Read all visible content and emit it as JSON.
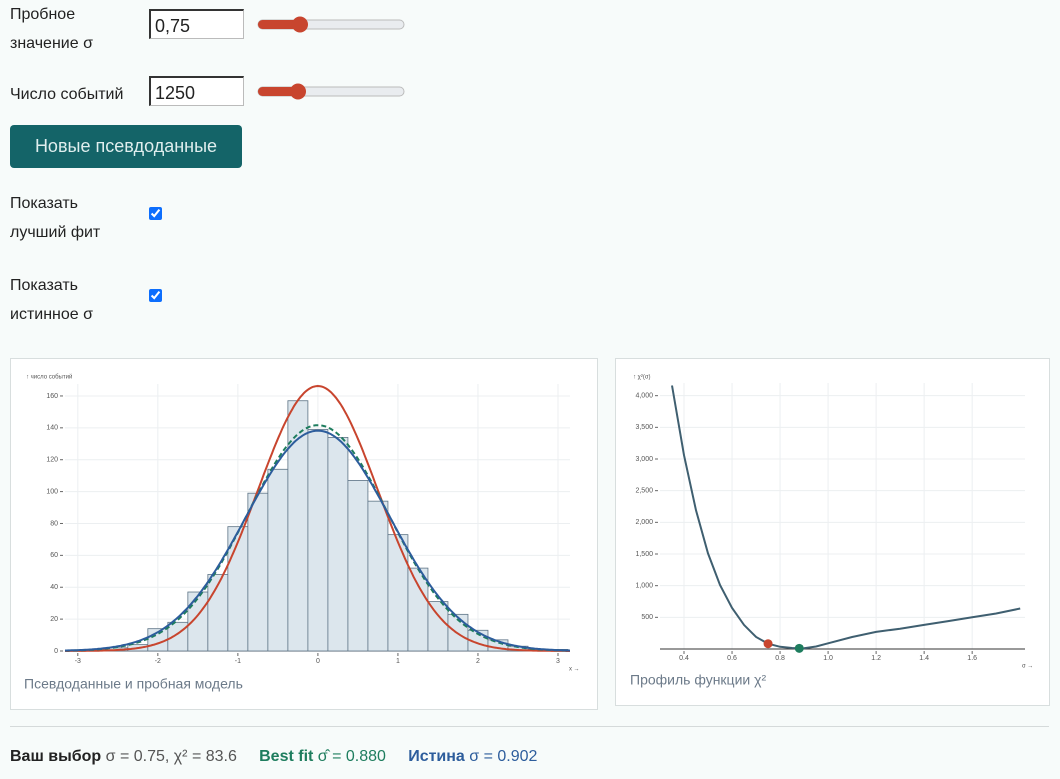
{
  "controls": {
    "sigma_label": "Пробное значение σ",
    "sigma_input": "0,75",
    "events_label": "Число событий",
    "events_value": 1250,
    "button": "Новые псевдоданные",
    "show_fit_label": "Показать лучший фит",
    "show_true_label": "Показать истинное σ"
  },
  "chart_data": [
    {
      "type": "histogram",
      "caption": "Псевдоданные и пробная модель",
      "ylabel": "↑ число событий",
      "xlabel": "x →",
      "bins": [
        -3.125,
        -2.875,
        -2.625,
        -2.375,
        -2.125,
        -1.875,
        -1.625,
        -1.375,
        -1.125,
        -0.875,
        -0.625,
        -0.375,
        -0.125,
        0.125,
        0.375,
        0.625,
        0.875,
        1.125,
        1.375,
        1.625,
        1.875,
        2.125,
        2.375,
        2.625,
        2.875,
        3.125
      ],
      "counts": [
        0,
        1,
        2,
        4,
        14,
        18,
        37,
        48,
        78,
        99,
        114,
        157,
        139,
        134,
        107,
        94,
        73,
        52,
        31,
        23,
        13,
        7,
        3,
        1,
        1
      ],
      "bar_color": "#dce6ed",
      "bar_edge": "#5d7385",
      "curves": [
        {
          "color": "#c8452e"
        },
        {
          "color": "#1e7d5e",
          "dashed": true
        },
        {
          "color": "#2d5d9c"
        }
      ],
      "xlim": [
        -3.16,
        3.15
      ],
      "xticks": [
        -3,
        -2,
        -1,
        0,
        1,
        2,
        3
      ],
      "ylim": [
        0,
        167.5
      ],
      "yticks": [
        0,
        20,
        40,
        60,
        80,
        100,
        120,
        140,
        160
      ],
      "grid": true
    },
    {
      "type": "line",
      "caption": "Профиль функции χ²",
      "ylabel": "↑ χ²(σ)",
      "xlabel": "σ →",
      "color": "#3f5f70",
      "x": [
        0.35,
        0.4,
        0.45,
        0.5,
        0.55,
        0.6,
        0.65,
        0.7,
        0.75,
        0.8,
        0.85,
        0.88,
        0.9,
        0.95,
        1.0,
        1.1,
        1.2,
        1.3,
        1.4,
        1.5,
        1.6,
        1.7,
        1.8
      ],
      "values": [
        4160,
        3060,
        2190,
        1510,
        1010,
        650,
        380,
        190,
        84,
        35,
        15,
        10,
        12,
        40,
        90,
        190,
        270,
        320,
        380,
        440,
        500,
        560,
        640
      ],
      "markers": [
        {
          "x": 0.75,
          "y": 83.6,
          "color": "#c8452e"
        },
        {
          "x": 0.88,
          "y": 10,
          "color": "#1e7d5e"
        }
      ],
      "xlim": [
        0.3,
        1.82
      ],
      "xticks": [
        0.4,
        0.6,
        0.8,
        {
          "value": 1,
          "label": "1.0"
        },
        1.2,
        1.4,
        1.6
      ],
      "ylim": [
        0,
        4200
      ],
      "yticks": [
        500,
        {
          "value": 1000,
          "label": "1,000"
        },
        {
          "value": 1500,
          "label": "1,500"
        },
        {
          "value": 2000,
          "label": "2,000"
        },
        {
          "value": 2500,
          "label": "2,500"
        },
        {
          "value": 3000,
          "label": "3,000"
        },
        {
          "value": 3500,
          "label": "3,500"
        },
        {
          "value": 4000,
          "label": "4,000"
        }
      ],
      "grid": true
    }
  ],
  "summary": {
    "choice": {
      "label": "Ваш выбор",
      "sigma_text": "σ = ",
      "sigma": 0.75,
      "chi2_text": ", χ² = ",
      "chi2": 83.6
    },
    "best": {
      "label": "Best fit",
      "sigma_text": "σ̂ = ",
      "sigma": {
        "value": 0.88,
        "label": "0.880"
      }
    },
    "truth": {
      "label": "Истина",
      "sigma_text": "σ = ",
      "sigma": 0.902
    }
  }
}
